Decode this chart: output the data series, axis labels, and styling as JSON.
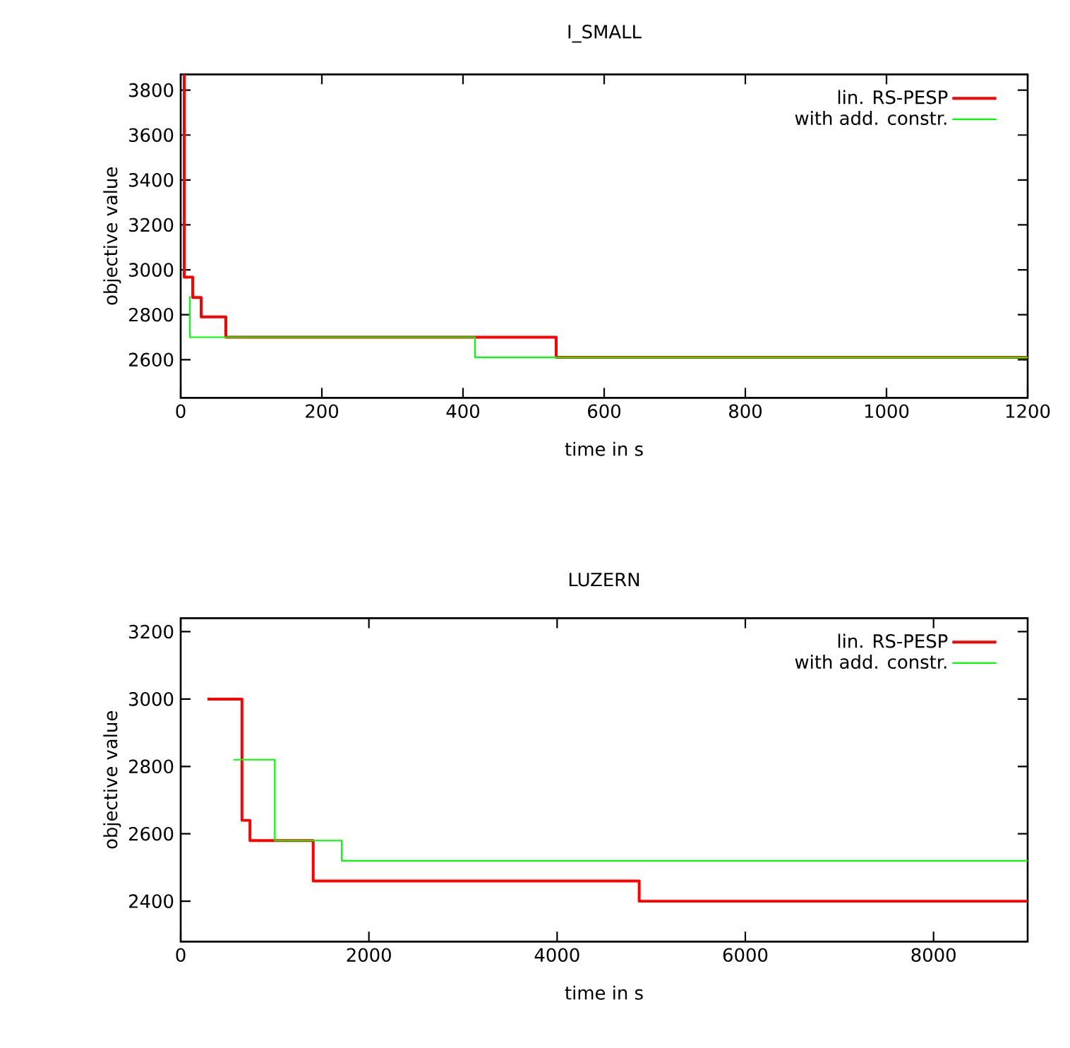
{
  "chart_data": [
    {
      "type": "step",
      "title": "I_SMALL",
      "xlabel": "time in s",
      "ylabel": "objective value",
      "xlim": [
        0,
        1200
      ],
      "xticks": [
        0,
        200,
        400,
        600,
        800,
        1000,
        1200
      ],
      "ylim": [
        2430,
        3870
      ],
      "yticks": [
        2600,
        2800,
        3000,
        3200,
        3400,
        3600,
        3800
      ],
      "legend": "top right",
      "grid": false,
      "marker": "none",
      "line_style": "solid",
      "series": [
        {
          "name": "lin. RS-PESP",
          "color": "#ff0000",
          "x": [
            3,
            5,
            17,
            29,
            64,
            532,
            1200
          ],
          "values": [
            3870,
            2967,
            2877,
            2790,
            2700,
            2610,
            2610
          ]
        },
        {
          "name": "with add. constr.",
          "color": "#00ff00",
          "x": [
            12,
            13,
            417,
            1200
          ],
          "values": [
            2880,
            2700,
            2610,
            2610
          ]
        }
      ]
    },
    {
      "type": "step",
      "title": "LUZERN",
      "xlabel": "time in s",
      "ylabel": "objective value",
      "xlim": [
        0,
        9000
      ],
      "xticks": [
        0,
        2000,
        4000,
        6000,
        8000
      ],
      "ylim": [
        2280,
        3240
      ],
      "yticks": [
        2400,
        2600,
        2800,
        3000,
        3200
      ],
      "legend": "top right",
      "grid": false,
      "marker": "none",
      "line_style": "solid",
      "series": [
        {
          "name": "lin. RS-PESP",
          "color": "#ff0000",
          "x": [
            284,
            651,
            736,
            1408,
            4872,
            9000
          ],
          "values": [
            3000,
            2640,
            2580,
            2460,
            2400,
            2400
          ]
        },
        {
          "name": "with add. constr.",
          "color": "#00ff00",
          "x": [
            562,
            1000,
            1711,
            9000
          ],
          "values": [
            2820,
            2580,
            2520,
            2520
          ]
        }
      ]
    }
  ]
}
